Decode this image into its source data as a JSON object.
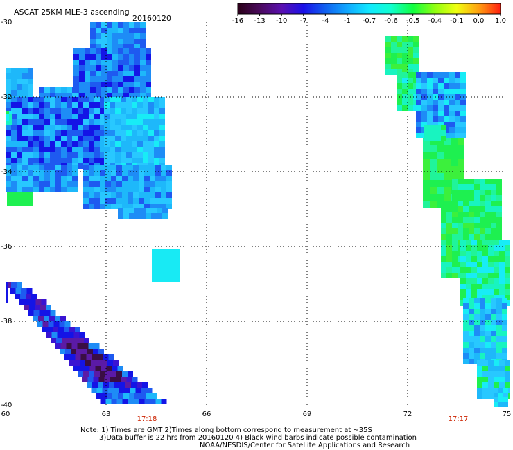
{
  "header": {
    "title": "ASCAT 25KM MLE-3 ascending",
    "date": "20160120"
  },
  "colorbar": {
    "labels": [
      "-16",
      "-13",
      "-10",
      "-7",
      "-4",
      "-1",
      "-0.7",
      "-0.6",
      "-0.5",
      "-0.4",
      "-0.1",
      "0.0",
      "1.0"
    ],
    "colors": [
      "#2a0018",
      "#4a0a5c",
      "#5a10b0",
      "#1a10e8",
      "#1060f0",
      "#10a8ff",
      "#10e8ff",
      "#10ffd0",
      "#10ff40",
      "#90ff10",
      "#f0ff10",
      "#ffa010",
      "#ff2010"
    ]
  },
  "axes": {
    "y_labels": [
      "-30",
      "-32",
      "-34",
      "-36",
      "-38",
      "-40"
    ],
    "x_labels": [
      "60",
      "63",
      "66",
      "69",
      "72",
      "75"
    ],
    "grid": "dotted"
  },
  "times": {
    "left": "17:18",
    "right": "17:17"
  },
  "notes": {
    "line1": "Note: 1) Times are GMT 2)Times along bottom correspond to measurement at ~35S",
    "line2": "3)Data buffer is 22 hrs from 20160120 4) Black wind barbs indicate possible contamination",
    "line3": "NOAA/NESDIS/Center for Satellite Applications and Research"
  }
}
